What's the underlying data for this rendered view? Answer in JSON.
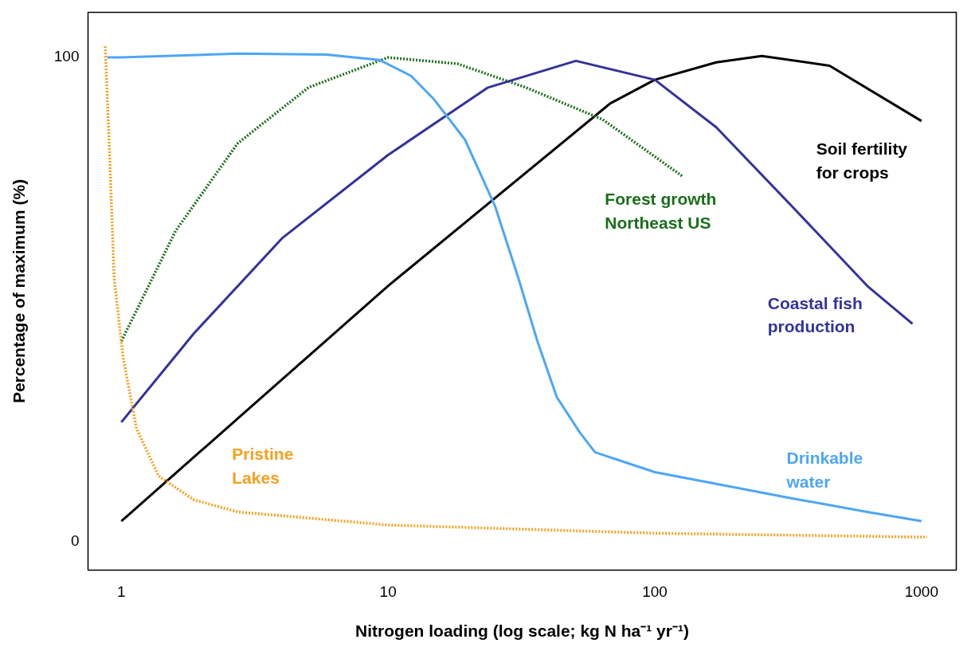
{
  "chart_data": {
    "type": "line",
    "xlabel": "Nitrogen loading (log scale; kg N ha⁻¹ yr⁻¹)",
    "ylabel": "Percentage of maximum (%)",
    "log": "x",
    "xlim": [
      0.75,
      1350
    ],
    "xticks": [
      1,
      10,
      100,
      1000
    ],
    "ylim": [
      -6,
      109
    ],
    "yticks": [
      0,
      100
    ],
    "grid": false,
    "marker": "none",
    "series": [
      {
        "name": "Soil fertility\nfor crops",
        "color": "#000000",
        "line_style": "solid",
        "x": [
          1,
          10,
          68,
          100,
          170,
          252,
          452,
          1000
        ],
        "values": [
          4.1,
          52.6,
          90.2,
          95.1,
          98.7,
          100,
          98,
          86.6
        ]
      },
      {
        "name": "Forest growth\nNortheast US",
        "color": "#1a6e1a",
        "line_style": "dotted",
        "x": [
          1,
          1.6,
          2.73,
          5.03,
          10,
          18.2,
          32.9,
          63.8,
          127
        ],
        "values": [
          41.2,
          64,
          82,
          93.5,
          99.7,
          98.4,
          93.5,
          86.9,
          75.2
        ]
      },
      {
        "name": "Coastal fish\nproduction",
        "color": "#333399",
        "line_style": "solid",
        "x": [
          1,
          1.87,
          4.0,
          10,
          23.7,
          50.6,
          100,
          170,
          327,
          626,
          925
        ],
        "values": [
          24.5,
          42.8,
          62.4,
          79.6,
          93.5,
          99,
          95.1,
          85.3,
          69,
          52.6,
          44.8
        ]
      },
      {
        "name": "Drinkable\nwater",
        "color": "#4da6f5",
        "line_style": "solid",
        "x": [
          0.885,
          1,
          2.73,
          5.87,
          9.27,
          12.2,
          14.9,
          19.4,
          25.2,
          30.8,
          36.3,
          42.9,
          52.3,
          59.7,
          100,
          170,
          327,
          626,
          1000
        ],
        "values": [
          99.7,
          99.7,
          100.5,
          100.3,
          99.2,
          95.9,
          91,
          82.8,
          69,
          54.2,
          41.2,
          29.7,
          22.4,
          18.3,
          14.2,
          11.8,
          8.8,
          6.0,
          4.1
        ]
      },
      {
        "name": "Pristine\nLakes",
        "color": "#f5a020",
        "line_style": "dotted",
        "x": [
          0.87,
          0.905,
          0.94,
          1.015,
          1.14,
          1.38,
          1.87,
          2.73,
          10,
          100,
          1050
        ],
        "values": [
          102,
          78.8,
          54.2,
          37.9,
          23.2,
          13.4,
          8.5,
          6.0,
          3.3,
          1.6,
          0.8
        ]
      }
    ]
  }
}
